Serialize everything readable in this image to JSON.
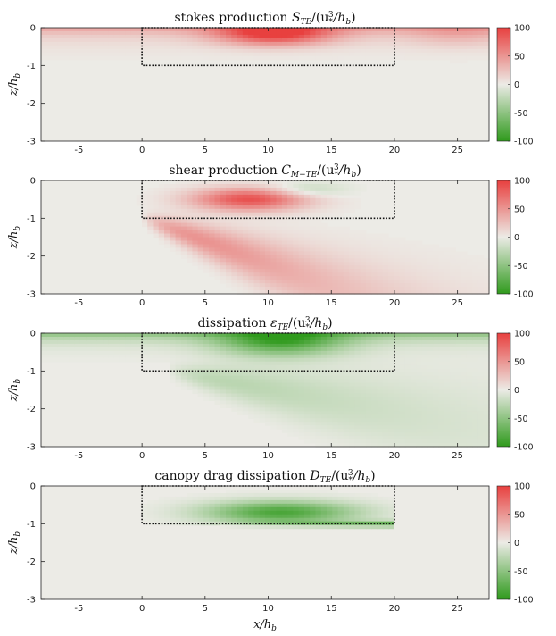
{
  "figure": {
    "xlabel": "x/h_b",
    "colors": {
      "positive": "#e8403f",
      "neutral": "#ecebe6",
      "negative": "#2f9a1c"
    }
  },
  "chart_data": [
    {
      "type": "heatmap",
      "title": "stokes production S_TE/(u_*^3/h_b)",
      "title_parts": {
        "main": "stokes production ",
        "sym": "S",
        "sub": "TE",
        "tail": "/(u",
        "tsub": "*",
        "tsup": "3",
        "end": "/h",
        "esub": "b",
        "close": ")"
      },
      "ylabel": "z/h_b",
      "xlim": [
        -8,
        27.5
      ],
      "ylim": [
        -3,
        0
      ],
      "xticks": [
        -5,
        0,
        5,
        10,
        15,
        20,
        25
      ],
      "yticks": [
        0,
        -1,
        -2,
        -3
      ],
      "canopy_box": {
        "x": [
          0,
          20
        ],
        "z": [
          -1,
          0
        ]
      },
      "colorbar": {
        "min": -100,
        "max": 100,
        "ticks": [
          100,
          50,
          0,
          -50,
          -100
        ]
      },
      "field_features": [
        {
          "kind": "surface-band",
          "sign": 1,
          "peak_value": 45,
          "z_decay": 0.25
        },
        {
          "kind": "blob",
          "sign": 1,
          "x_center": 10.5,
          "z_center": -0.15,
          "x_width": 4.5,
          "z_width": 0.3,
          "peak_value": 95
        },
        {
          "kind": "blob",
          "sign": 1,
          "x_center": 25,
          "z_center": -0.15,
          "x_width": 4,
          "z_width": 0.35,
          "peak_value": 20
        }
      ]
    },
    {
      "type": "heatmap",
      "title": "shear production C_M-TE/(u_*^3/h_b)",
      "title_parts": {
        "main": "shear production ",
        "sym": "C",
        "sub": "M−TE",
        "tail": "/(u",
        "tsub": "*",
        "tsup": "3",
        "end": "/h",
        "esub": "b",
        "close": ")"
      },
      "ylabel": "z/h_b",
      "xlim": [
        -8,
        27.5
      ],
      "ylim": [
        -3,
        0
      ],
      "xticks": [
        -5,
        0,
        5,
        10,
        15,
        20,
        25
      ],
      "yticks": [
        0,
        -1,
        -2,
        -3
      ],
      "canopy_box": {
        "x": [
          0,
          20
        ],
        "z": [
          -1,
          0
        ]
      },
      "colorbar": {
        "min": -100,
        "max": 100,
        "ticks": [
          100,
          50,
          0,
          -50,
          -100
        ]
      },
      "field_features": [
        {
          "kind": "blob",
          "sign": 1,
          "x_center": 8.5,
          "z_center": -0.5,
          "x_width": 4.5,
          "z_width": 0.3,
          "peak_value": 90
        },
        {
          "kind": "shear-layer",
          "sign": 1,
          "x_start": 0,
          "z_start": -1,
          "slope": -0.12,
          "peak_value": 85,
          "x_decay": 14
        },
        {
          "kind": "blob",
          "sign": -1,
          "x_center": 13,
          "z_center": -0.25,
          "x_width": 3,
          "z_width": 0.2,
          "peak_value": 25
        }
      ]
    },
    {
      "type": "heatmap",
      "title": "dissipation ε_TE/(u_*^3/h_b)",
      "title_parts": {
        "main": "dissipation ",
        "sym": "ε",
        "sub": "TE",
        "tail": "/(u",
        "tsub": "*",
        "tsup": "3",
        "end": "/h",
        "esub": "b",
        "close": ")"
      },
      "ylabel": "z/h_b",
      "xlim": [
        -8,
        27.5
      ],
      "ylim": [
        -3,
        0
      ],
      "xticks": [
        -5,
        0,
        5,
        10,
        15,
        20,
        25
      ],
      "yticks": [
        0,
        -1,
        -2,
        -3
      ],
      "canopy_box": {
        "x": [
          0,
          20
        ],
        "z": [
          -1,
          0
        ]
      },
      "colorbar": {
        "min": -100,
        "max": 100,
        "ticks": [
          100,
          50,
          0,
          -50,
          -100
        ]
      },
      "field_features": [
        {
          "kind": "surface-band",
          "sign": -1,
          "peak_value": 55,
          "z_decay": 0.2
        },
        {
          "kind": "blob",
          "sign": -1,
          "x_center": 11,
          "z_center": -0.2,
          "x_width": 5,
          "z_width": 0.4,
          "peak_value": 80
        },
        {
          "kind": "shear-layer",
          "sign": -1,
          "x_start": 2,
          "z_start": -1,
          "slope": -0.06,
          "peak_value": 40,
          "x_decay": 18
        }
      ]
    },
    {
      "type": "heatmap",
      "title": "canopy drag dissipation D_TE/(u_*^3/h_b)",
      "title_parts": {
        "main": "canopy drag dissipation ",
        "sym": "D",
        "sub": "TE",
        "tail": "/(u",
        "tsub": "*",
        "tsup": "3",
        "end": "/h",
        "esub": "b",
        "close": ")"
      },
      "ylabel": "z/h_b",
      "xlabel": "x/h_b",
      "xlim": [
        -8,
        27.5
      ],
      "ylim": [
        -3,
        0
      ],
      "xticks": [
        -5,
        0,
        5,
        10,
        15,
        20,
        25
      ],
      "yticks": [
        0,
        -1,
        -2,
        -3
      ],
      "canopy_box": {
        "x": [
          0,
          20
        ],
        "z": [
          -1,
          0
        ]
      },
      "colorbar": {
        "min": -100,
        "max": 100,
        "ticks": [
          100,
          50,
          0,
          -50,
          -100
        ]
      },
      "field_features": [
        {
          "kind": "canopy-fill",
          "sign": -1,
          "x_center": 11,
          "z_center": -0.7,
          "x_width": 6,
          "z_width": 0.3,
          "peak_value": 85
        },
        {
          "kind": "canopy-edge",
          "sign": -1,
          "x_range": [
            6,
            20
          ],
          "z": -1,
          "peak_value": 70
        }
      ]
    }
  ]
}
